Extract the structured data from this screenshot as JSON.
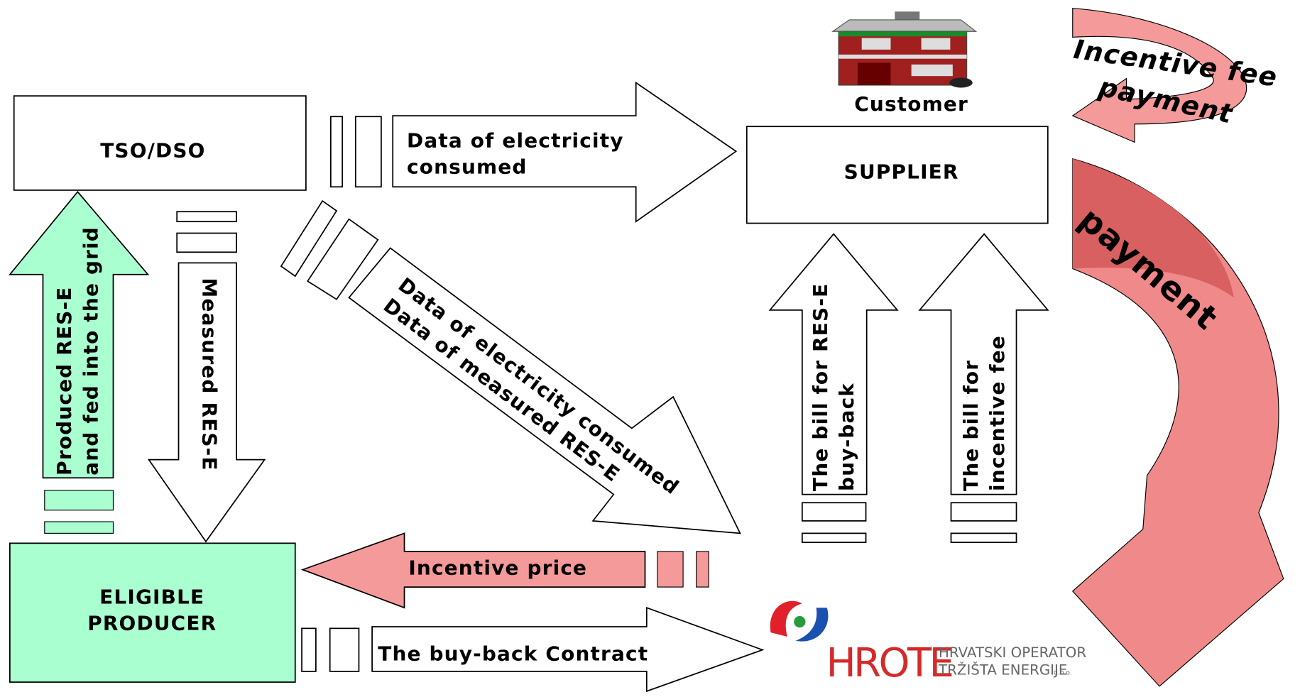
{
  "nodes": {
    "tso_dso": {
      "label": "TSO/DSO"
    },
    "supplier": {
      "label": "SUPPLIER"
    },
    "customer": {
      "label": "Customer"
    },
    "producer": {
      "lines": [
        "ELIGIBLE",
        "PRODUCER"
      ]
    }
  },
  "arrows": {
    "data_consumed": {
      "lines": [
        "Data of electricity",
        "consumed"
      ]
    },
    "produced": {
      "lines": [
        "Produced RES-E",
        "and fed into the grid"
      ]
    },
    "measured": {
      "label": "Measured RES-E"
    },
    "diagonal": {
      "lines": [
        "Data of electricity consumed",
        "Data of measured RES-E"
      ]
    },
    "bill_buyback": {
      "lines": [
        "The bill for RES-E",
        "buy-back"
      ]
    },
    "bill_incentive": {
      "lines": [
        "The bill for",
        "incentive fee"
      ]
    },
    "incentive_price": {
      "label": "Incentive price"
    },
    "contract": {
      "label": "The buy-back Contract"
    },
    "incentive_fee_payment": {
      "lines": [
        "Incentive fee",
        "payment"
      ]
    },
    "payment": {
      "label": "payment"
    }
  },
  "logo": {
    "name": "HROTE",
    "lines": [
      "HRVATSKI OPERATOR",
      "TRŽIŠTA ENERGIJE"
    ],
    "suffix": "d.o.o."
  }
}
